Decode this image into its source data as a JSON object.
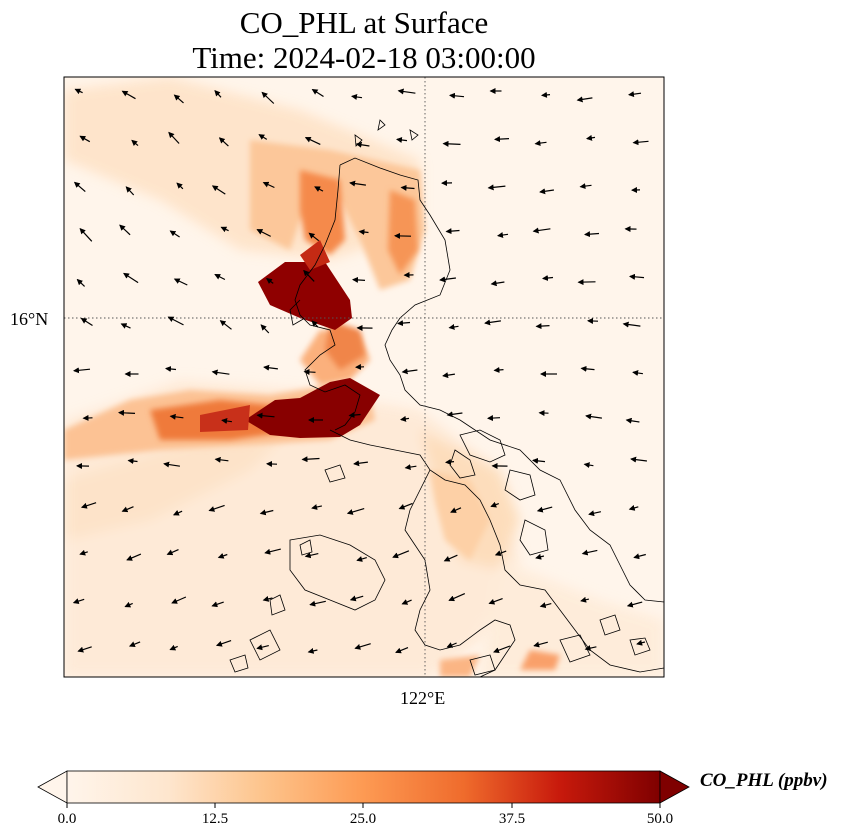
{
  "title": {
    "line1": "CO_PHL at Surface",
    "line2": "Time: 2024-02-18 03:00:00"
  },
  "axes": {
    "lat_label": "16°N",
    "lon_label": "122°E"
  },
  "colorbar": {
    "label": "CO_PHL (ppbv)",
    "ticks": [
      "0.0",
      "12.5",
      "25.0",
      "37.5",
      "50.0"
    ],
    "range": [
      0,
      50
    ],
    "extend": "both",
    "colormap": [
      "#fff5eb",
      "#fdd9b4",
      "#fda762",
      "#f3701b",
      "#d94801",
      "#b30000",
      "#7f0000"
    ]
  }
}
